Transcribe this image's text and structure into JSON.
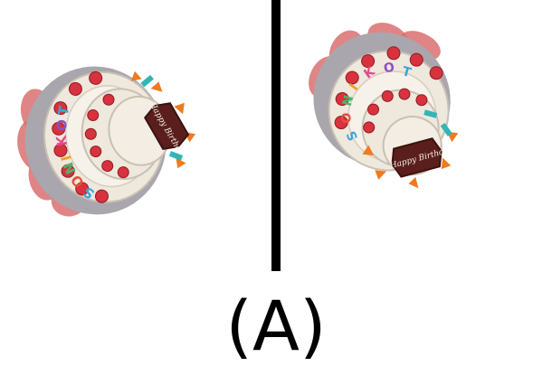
{
  "caption": "(A)",
  "cake": {
    "name_text": "TOKINOSO",
    "plaque_text": "Happy Birthd",
    "colors": {
      "frosting": "#efe8dc",
      "frosting_shadow": "#c9c0b3",
      "strawberry": "#d8323e",
      "drape_red": "#d97070",
      "drape_grey": "#a9a7ad",
      "plaque": "#5a1f1c",
      "candle_orange": "#f07a1e",
      "candle_teal": "#33b5b8"
    },
    "letter_colors": [
      "#3aa6d8",
      "#8d4fc4",
      "#e24a8b",
      "#f2a11b",
      "#49b76a",
      "#e94c3d",
      "#3aa6d8",
      "#8d4fc4"
    ]
  }
}
